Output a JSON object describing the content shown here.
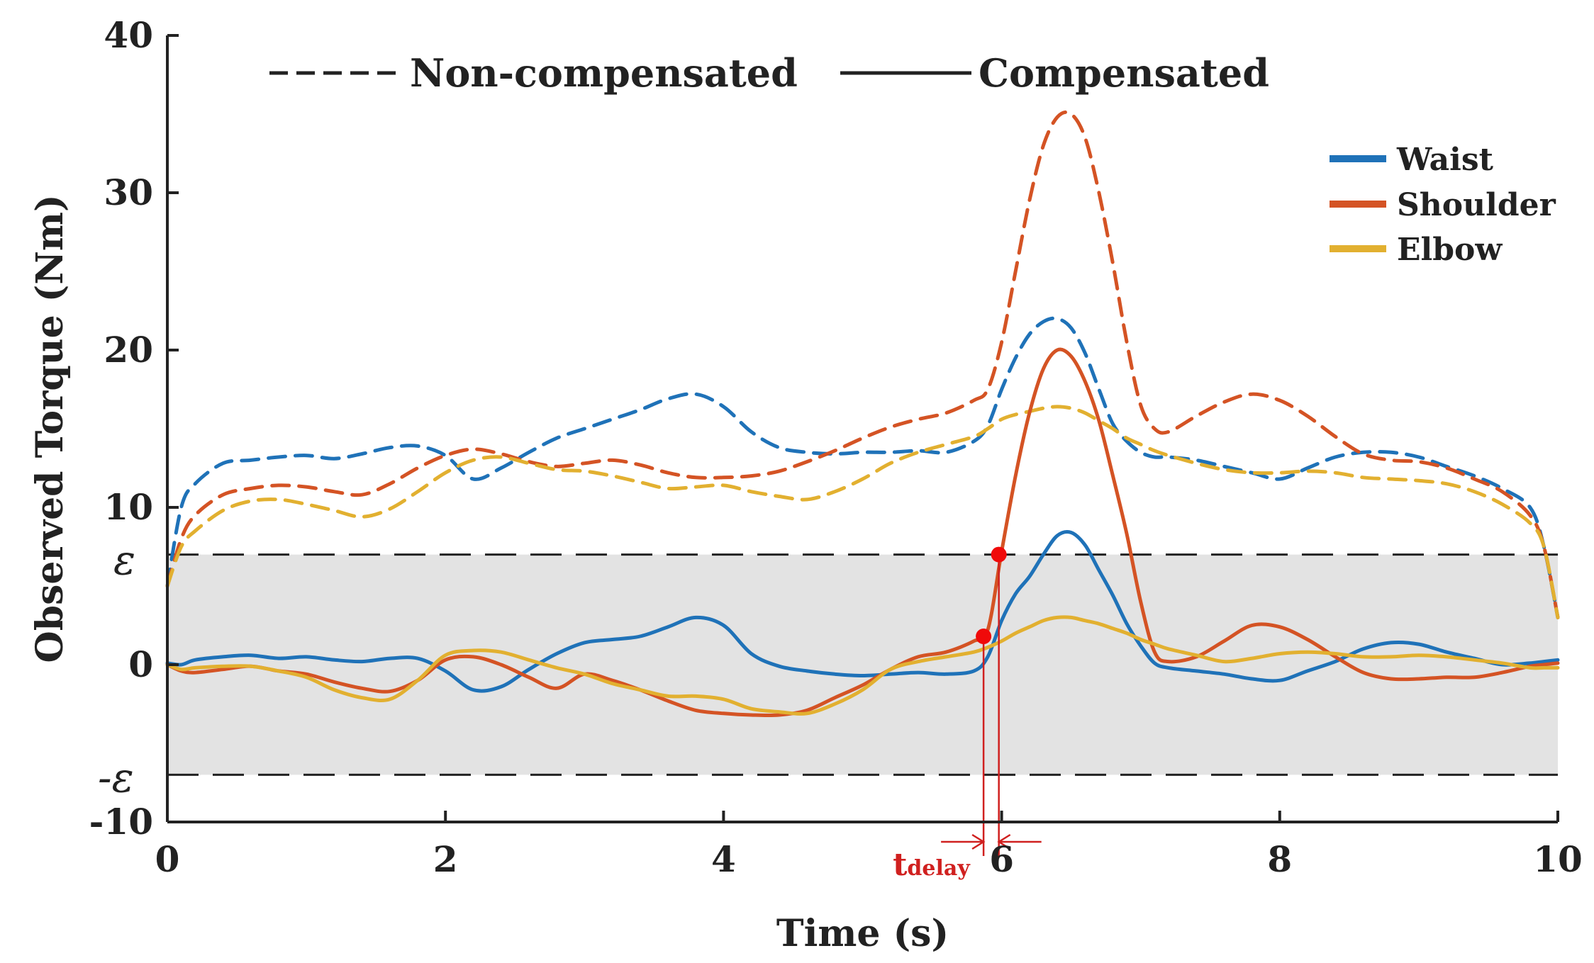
{
  "chart_data": {
    "type": "line",
    "title": "",
    "xlabel": "Time (s)",
    "ylabel": "Observed Torque (Nm)",
    "xlim": [
      0,
      10
    ],
    "ylim": [
      -10,
      40
    ],
    "xticks": [
      0,
      2,
      4,
      6,
      8,
      10
    ],
    "yticks": [
      -10,
      0,
      10,
      20,
      30,
      40
    ],
    "grid": false,
    "threshold": {
      "value": 7,
      "label": "ε",
      "neg_label": "-ε",
      "band_color": "#e3e3e3"
    },
    "style_legend": [
      {
        "label": "Non-compensated",
        "dash": "dashed"
      },
      {
        "label": "Compensated",
        "dash": "solid"
      }
    ],
    "color_legend": {
      "position": "top-right"
    },
    "annotation": {
      "main": "t",
      "sub": "delay",
      "color": "#d0201f",
      "t_start": 5.87,
      "t_end": 5.98,
      "points": [
        {
          "x": 5.87,
          "y": 1.8
        },
        {
          "x": 5.98,
          "y": 7
        }
      ]
    },
    "x": [
      0,
      0.1,
      0.2,
      0.4,
      0.6,
      0.8,
      1.0,
      1.2,
      1.4,
      1.6,
      1.8,
      2.0,
      2.2,
      2.4,
      2.6,
      2.8,
      3.0,
      3.2,
      3.4,
      3.6,
      3.8,
      4.0,
      4.2,
      4.4,
      4.6,
      4.8,
      5.0,
      5.2,
      5.4,
      5.6,
      5.8,
      5.9,
      6.0,
      6.1,
      6.2,
      6.3,
      6.4,
      6.5,
      6.6,
      6.7,
      6.8,
      6.9,
      7.0,
      7.1,
      7.2,
      7.4,
      7.6,
      7.8,
      8.0,
      8.2,
      8.4,
      8.6,
      8.8,
      9.0,
      9.2,
      9.4,
      9.6,
      9.8,
      9.9,
      10.0
    ],
    "series": [
      {
        "name": "Waist",
        "style": "Non-compensated",
        "color": "#1f72b8",
        "values": [
          5,
          10,
          11.5,
          12.8,
          13,
          13.2,
          13.3,
          13.1,
          13.4,
          13.8,
          13.9,
          13.3,
          11.8,
          12.5,
          13.5,
          14.4,
          15,
          15.6,
          16.2,
          16.9,
          17.2,
          16.4,
          14.8,
          13.8,
          13.5,
          13.4,
          13.5,
          13.5,
          13.6,
          13.5,
          14.2,
          15.2,
          17.5,
          19.5,
          21,
          21.8,
          22,
          21.4,
          19.8,
          17.5,
          15.3,
          14.2,
          13.5,
          13.2,
          13.2,
          13,
          12.6,
          12.2,
          11.8,
          12.5,
          13.2,
          13.5,
          13.5,
          13.2,
          12.6,
          12,
          11.2,
          10,
          7.5,
          3
        ]
      },
      {
        "name": "Shoulder",
        "style": "Non-compensated",
        "color": "#d45324",
        "values": [
          5,
          8,
          9.5,
          10.8,
          11.2,
          11.4,
          11.3,
          11,
          10.8,
          11.5,
          12.5,
          13.3,
          13.7,
          13.4,
          12.9,
          12.6,
          12.8,
          13,
          12.7,
          12.2,
          11.9,
          11.9,
          12,
          12.3,
          12.9,
          13.6,
          14.4,
          15.1,
          15.6,
          16,
          16.8,
          17.5,
          20.5,
          25,
          29.5,
          33,
          34.8,
          35,
          33.5,
          30,
          25.5,
          20.5,
          16.5,
          15,
          14.8,
          15.8,
          16.7,
          17.2,
          16.8,
          15.8,
          14.5,
          13.4,
          13,
          12.9,
          12.5,
          11.8,
          11,
          9.5,
          7.5,
          3
        ]
      },
      {
        "name": "Elbow",
        "style": "Non-compensated",
        "color": "#e2b030",
        "values": [
          5,
          7.5,
          8.5,
          9.8,
          10.4,
          10.5,
          10.2,
          9.8,
          9.4,
          9.9,
          11,
          12.2,
          13,
          13.2,
          12.8,
          12.4,
          12.3,
          12,
          11.6,
          11.2,
          11.3,
          11.4,
          11,
          10.7,
          10.5,
          11,
          11.8,
          12.8,
          13.5,
          14,
          14.5,
          15,
          15.6,
          15.9,
          16.1,
          16.3,
          16.4,
          16.3,
          16,
          15.5,
          15,
          14.4,
          14,
          13.6,
          13.3,
          12.8,
          12.4,
          12.2,
          12.2,
          12.3,
          12.2,
          11.9,
          11.8,
          11.7,
          11.5,
          11,
          10.2,
          9,
          7.5,
          3
        ]
      },
      {
        "name": "Waist",
        "style": "Compensated",
        "color": "#1f72b8",
        "values": [
          0.1,
          0,
          0.3,
          0.5,
          0.6,
          0.4,
          0.5,
          0.3,
          0.2,
          0.4,
          0.4,
          -0.4,
          -1.6,
          -1.4,
          -0.3,
          0.7,
          1.4,
          1.6,
          1.8,
          2.4,
          3,
          2.5,
          0.7,
          -0.1,
          -0.4,
          -0.6,
          -0.7,
          -0.6,
          -0.5,
          -0.6,
          -0.4,
          0.5,
          2.8,
          4.5,
          5.6,
          7,
          8.2,
          8.4,
          7.6,
          6,
          4.4,
          2.6,
          1.2,
          0.1,
          -0.2,
          -0.4,
          -0.6,
          -0.9,
          -1,
          -0.4,
          0.2,
          1,
          1.4,
          1.3,
          0.8,
          0.4,
          0,
          0.1,
          0.2,
          0.3
        ]
      },
      {
        "name": "Shoulder",
        "style": "Compensated",
        "color": "#d45324",
        "values": [
          0,
          -0.4,
          -0.5,
          -0.3,
          -0.1,
          -0.4,
          -0.6,
          -1.1,
          -1.5,
          -1.7,
          -1,
          0.3,
          0.5,
          0,
          -0.8,
          -1.5,
          -0.6,
          -1,
          -1.6,
          -2.3,
          -2.9,
          -3.1,
          -3.2,
          -3.2,
          -2.9,
          -2.1,
          -1.3,
          -0.3,
          0.5,
          0.8,
          1.5,
          2.2,
          7.2,
          12,
          16,
          18.8,
          20,
          19.6,
          18,
          15.5,
          12,
          8.3,
          4,
          0.8,
          0.2,
          0.5,
          1.5,
          2.5,
          2.4,
          1.6,
          0.5,
          -0.5,
          -0.9,
          -0.9,
          -0.8,
          -0.8,
          -0.5,
          -0.1,
          0,
          0.1
        ]
      },
      {
        "name": "Elbow",
        "style": "Compensated",
        "color": "#e2b030",
        "values": [
          0,
          -0.3,
          -0.2,
          -0.1,
          -0.1,
          -0.4,
          -0.8,
          -1.6,
          -2.1,
          -2.2,
          -1,
          0.6,
          0.9,
          0.8,
          0.3,
          -0.2,
          -0.6,
          -1.2,
          -1.6,
          -2,
          -2,
          -2.2,
          -2.8,
          -3,
          -3.1,
          -2.5,
          -1.6,
          -0.3,
          0.2,
          0.5,
          0.8,
          1.1,
          1.5,
          2,
          2.4,
          2.8,
          3,
          3,
          2.8,
          2.6,
          2.3,
          2,
          1.6,
          1.3,
          1,
          0.6,
          0.2,
          0.4,
          0.7,
          0.8,
          0.7,
          0.5,
          0.5,
          0.6,
          0.5,
          0.3,
          0.1,
          -0.2,
          -0.2,
          -0.2
        ]
      }
    ]
  },
  "legend": {
    "items": [
      {
        "label": "Waist",
        "color": "#1f72b8"
      },
      {
        "label": "Shoulder",
        "color": "#d45324"
      },
      {
        "label": "Elbow",
        "color": "#e2b030"
      }
    ]
  }
}
